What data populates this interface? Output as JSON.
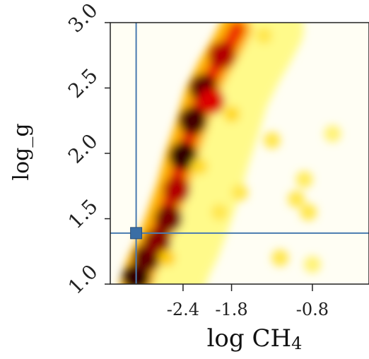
{
  "chart_data": {
    "type": "heatmap",
    "title": "",
    "xlabel": "log CH",
    "xlabel_subscript": "4",
    "ylabel": "log_g",
    "xlim": [
      -3.3,
      -0.1
    ],
    "ylim": [
      1.0,
      3.0
    ],
    "x_ticks": [
      {
        "value": -2.4,
        "label": "-2.4"
      },
      {
        "value": -1.8,
        "label": "-1.8"
      },
      {
        "value": -0.8,
        "label": "-0.8"
      }
    ],
    "y_ticks": [
      {
        "value": 1.0,
        "label": "1.0"
      },
      {
        "value": 1.5,
        "label": "1.5"
      },
      {
        "value": 2.0,
        "label": "2.0"
      },
      {
        "value": 2.5,
        "label": "2.5"
      },
      {
        "value": 3.0,
        "label": "3.0"
      }
    ],
    "colormap": [
      "#ffffff",
      "#ffff99",
      "#ffcc00",
      "#ff6600",
      "#dd0000",
      "#330000"
    ],
    "reference_lines": {
      "x": -2.98,
      "y": 1.39,
      "color": "#4a7bb0"
    },
    "marker": {
      "x": -2.98,
      "y": 1.39,
      "color": "#3a6ea5",
      "shape": "square"
    },
    "ridge": [
      {
        "x": -2.98,
        "y": 1.0
      },
      {
        "x": -2.9,
        "y": 1.15
      },
      {
        "x": -2.78,
        "y": 1.3
      },
      {
        "x": -2.66,
        "y": 1.5
      },
      {
        "x": -2.52,
        "y": 1.75
      },
      {
        "x": -2.42,
        "y": 1.98
      },
      {
        "x": -2.3,
        "y": 2.2
      },
      {
        "x": -2.18,
        "y": 2.45
      },
      {
        "x": -2.02,
        "y": 2.65
      },
      {
        "x": -1.86,
        "y": 2.82
      },
      {
        "x": -1.75,
        "y": 2.95
      }
    ],
    "blobs": [
      {
        "x": -2.98,
        "y": 1.05,
        "v": 1.0
      },
      {
        "x": -2.85,
        "y": 1.2,
        "v": 0.95
      },
      {
        "x": -2.72,
        "y": 1.32,
        "v": 0.9
      },
      {
        "x": -2.58,
        "y": 1.5,
        "v": 0.92
      },
      {
        "x": -2.48,
        "y": 1.72,
        "v": 0.85
      },
      {
        "x": -2.4,
        "y": 1.98,
        "v": 1.0
      },
      {
        "x": -2.28,
        "y": 2.25,
        "v": 0.98
      },
      {
        "x": -2.15,
        "y": 2.5,
        "v": 0.95
      },
      {
        "x": -2.05,
        "y": 2.4,
        "v": 0.8
      },
      {
        "x": -1.92,
        "y": 2.75,
        "v": 0.85
      },
      {
        "x": -1.8,
        "y": 2.3,
        "v": 0.35
      },
      {
        "x": -1.7,
        "y": 1.7,
        "v": 0.3
      },
      {
        "x": -1.4,
        "y": 2.9,
        "v": 0.3
      },
      {
        "x": -1.3,
        "y": 2.1,
        "v": 0.3
      },
      {
        "x": -1.2,
        "y": 1.2,
        "v": 0.3
      },
      {
        "x": -1.0,
        "y": 1.65,
        "v": 0.3
      },
      {
        "x": -0.9,
        "y": 1.8,
        "v": 0.28
      },
      {
        "x": -0.85,
        "y": 1.55,
        "v": 0.3
      },
      {
        "x": -0.8,
        "y": 1.15,
        "v": 0.25
      },
      {
        "x": -0.55,
        "y": 2.15,
        "v": 0.25
      },
      {
        "x": -2.6,
        "y": 1.2,
        "v": 0.4
      },
      {
        "x": -2.2,
        "y": 1.9,
        "v": 0.35
      },
      {
        "x": -1.95,
        "y": 1.55,
        "v": 0.3
      }
    ]
  }
}
